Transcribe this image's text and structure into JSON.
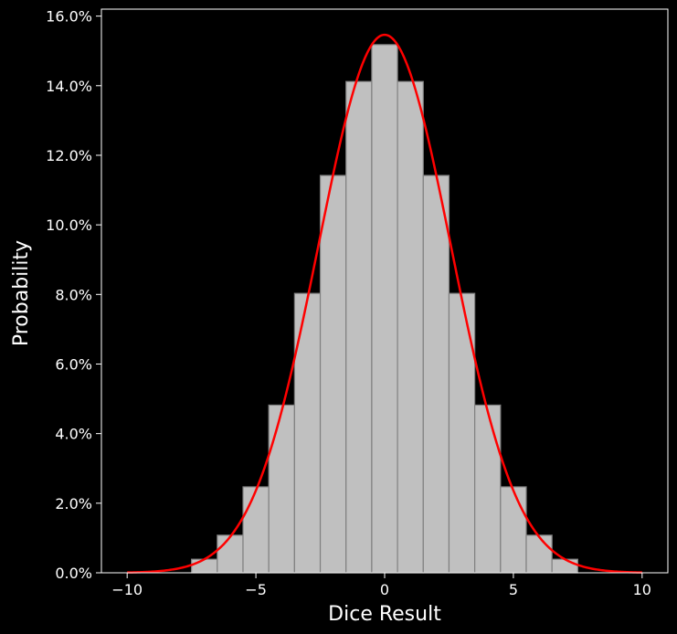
{
  "chart_data": {
    "type": "bar",
    "title": "",
    "xlabel": "Dice Result",
    "ylabel": "Probability",
    "xlim": [
      -11,
      11
    ],
    "ylim": [
      0,
      0.162
    ],
    "x_ticks": [
      -10,
      -5,
      0,
      5,
      10
    ],
    "x_tick_labels": [
      "−10",
      "−5",
      "0",
      "5",
      "10"
    ],
    "y_ticks": [
      0,
      0.02,
      0.04,
      0.06,
      0.08,
      0.1,
      0.12,
      0.14,
      0.16
    ],
    "y_tick_labels": [
      "0.0%",
      "2.0%",
      "4.0%",
      "6.0%",
      "8.0%",
      "10.0%",
      "12.0%",
      "14.0%",
      "16.0%"
    ],
    "bar_width": 1,
    "bars": {
      "x": [
        -7,
        -6,
        -5,
        -4,
        -3,
        -2,
        -1,
        0,
        1,
        2,
        3,
        4,
        5,
        6,
        7
      ],
      "values": [
        0.0039,
        0.0108,
        0.0247,
        0.0482,
        0.0803,
        0.1142,
        0.1412,
        0.1518,
        0.1412,
        0.1142,
        0.0803,
        0.0482,
        0.0247,
        0.0108,
        0.0039
      ]
    },
    "curve": {
      "type": "normal-pdf",
      "mean": 0,
      "std": 2.58,
      "x_range": [
        -10,
        10
      ]
    },
    "grid": false,
    "colors": {
      "background": "#000000",
      "bar_fill": "#c0c0c0",
      "bar_edge": "#808080",
      "curve": "#ff0000",
      "axis": "#ffffff",
      "text": "#ffffff"
    }
  }
}
